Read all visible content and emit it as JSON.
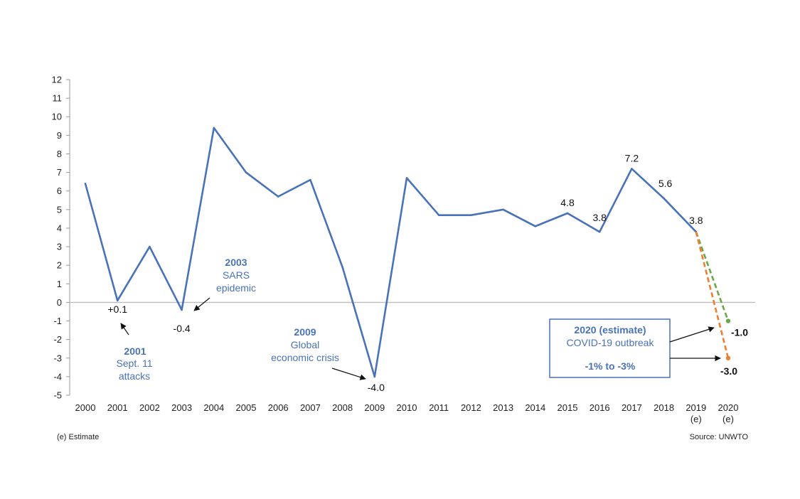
{
  "chart_data": {
    "type": "line",
    "categories": [
      "2000",
      "2001",
      "2002",
      "2003",
      "2004",
      "2005",
      "2006",
      "2007",
      "2008",
      "2009",
      "2010",
      "2011",
      "2012",
      "2013",
      "2014",
      "2015",
      "2016",
      "2017",
      "2018",
      "2019",
      "2020"
    ],
    "category_sub": {
      "2019": "(e)",
      "2020": "(e)"
    },
    "series": [
      {
        "values": [
          6.4,
          0.1,
          3.0,
          -0.4,
          9.4,
          7.0,
          5.7,
          6.6,
          1.9,
          -4.0,
          6.7,
          4.7,
          4.7,
          5.0,
          4.1,
          4.8,
          3.8,
          7.2,
          5.6,
          3.8,
          null
        ],
        "color": "#4a72b8"
      }
    ],
    "projections": [
      {
        "from": "2019",
        "from_value": 3.8,
        "to": "2020",
        "to_value": -1.0,
        "color": "#6aa845",
        "label": "-1.0"
      },
      {
        "from": "2019",
        "from_value": 3.8,
        "to": "2020",
        "to_value": -3.0,
        "color": "#ed7d31",
        "label": "-3.0"
      }
    ],
    "ylim": [
      -5,
      12
    ],
    "yticks": [
      12,
      11,
      10,
      9,
      8,
      7,
      6,
      5,
      4,
      3,
      2,
      1,
      0,
      -1,
      -2,
      -3,
      -4,
      -5
    ],
    "title": "",
    "xlabel": "",
    "ylabel": "",
    "grid": false,
    "data_labels": [
      {
        "category": "2001",
        "value": 0.1,
        "text": "+0.1"
      },
      {
        "category": "2003",
        "value": -0.4,
        "text": "-0.4"
      },
      {
        "category": "2009",
        "value": -4.0,
        "text": "-4.0"
      },
      {
        "category": "2015",
        "value": 4.8,
        "text": "4.8"
      },
      {
        "category": "2016",
        "value": 3.8,
        "text": "3.8"
      },
      {
        "category": "2017",
        "value": 7.2,
        "text": "7.2"
      },
      {
        "category": "2018",
        "value": 5.6,
        "text": "5.6"
      },
      {
        "category": "2019",
        "value": 3.8,
        "text": "3.8"
      }
    ],
    "annotations": [
      {
        "bold": "2001",
        "lines": [
          "Sept. 11",
          "attacks"
        ]
      },
      {
        "bold": "2003",
        "lines": [
          "SARS",
          "epidemic"
        ]
      },
      {
        "bold": "2009",
        "lines": [
          "Global",
          "economic crisis"
        ]
      }
    ],
    "callout": {
      "title": "2020 (estimate)",
      "subtitle": "COVID-19 outbreak",
      "range": "-1% to -3%",
      "border_color": "#4a72b8"
    },
    "footnote": "(e) Estimate",
    "source": "Source: UNWTO"
  }
}
